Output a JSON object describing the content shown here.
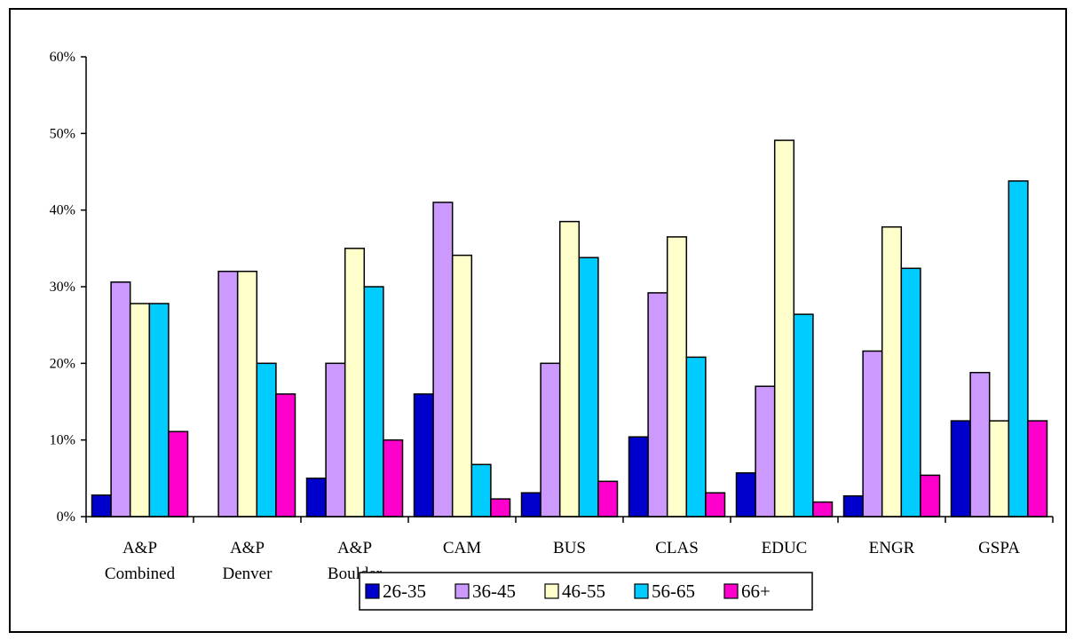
{
  "chart_data": {
    "type": "bar",
    "title": "",
    "xlabel": "",
    "ylabel": "",
    "ylim": [
      0,
      60
    ],
    "y_tick_labels": [
      "0%",
      "10%",
      "20%",
      "30%",
      "40%",
      "50%",
      "60%"
    ],
    "y_tick_values": [
      0,
      10,
      20,
      30,
      40,
      50,
      60
    ],
    "grid": false,
    "legend_position": "bottom",
    "categories": [
      [
        "A&P",
        "Combined"
      ],
      [
        "A&P",
        "Denver"
      ],
      [
        "A&P",
        "Boulder"
      ],
      [
        "CAM"
      ],
      [
        "BUS"
      ],
      [
        "CLAS"
      ],
      [
        "EDUC"
      ],
      [
        "ENGR"
      ],
      [
        "GSPA"
      ]
    ],
    "series": [
      {
        "name": "26-35",
        "color": "#0000cc",
        "values": [
          2.8,
          0,
          5.0,
          16.0,
          3.1,
          10.4,
          5.7,
          2.7,
          12.5
        ]
      },
      {
        "name": "36-45",
        "color": "#cc99ff",
        "values": [
          30.6,
          32.0,
          20.0,
          41.0,
          20.0,
          29.2,
          17.0,
          21.6,
          18.8
        ]
      },
      {
        "name": "46-55",
        "color": "#ffffcc",
        "values": [
          27.8,
          32.0,
          35.0,
          34.1,
          38.5,
          36.5,
          49.1,
          37.8,
          12.5
        ]
      },
      {
        "name": "56-65",
        "color": "#00ccff",
        "values": [
          27.8,
          20.0,
          30.0,
          6.8,
          33.8,
          20.8,
          26.4,
          32.4,
          43.8
        ]
      },
      {
        "name": "66+",
        "color": "#ff00cc",
        "values": [
          11.1,
          16.0,
          10.0,
          2.3,
          4.6,
          3.1,
          1.9,
          5.4,
          12.5
        ]
      }
    ]
  }
}
